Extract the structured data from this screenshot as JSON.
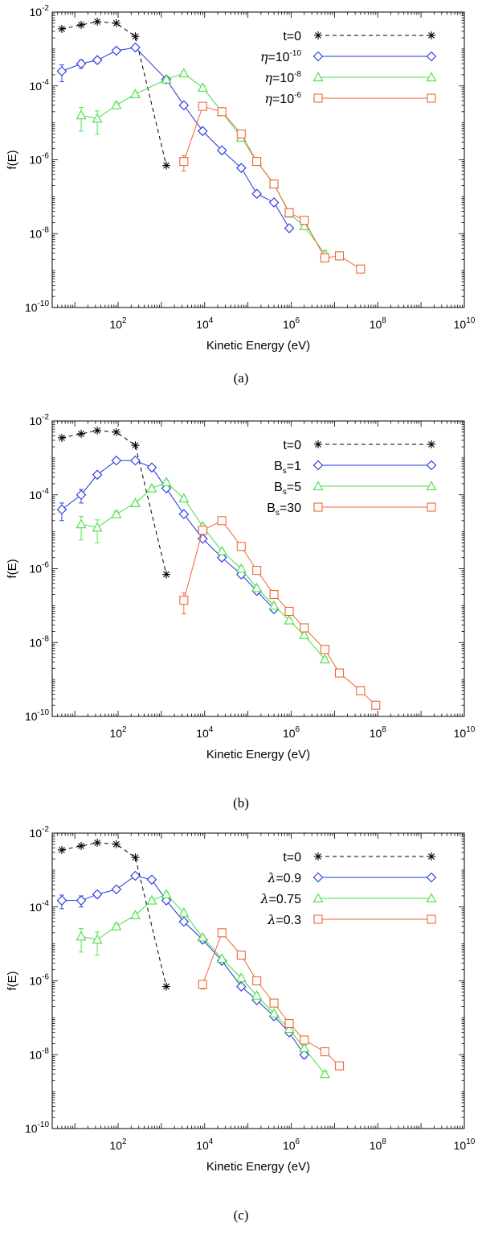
{
  "chart_data": [
    {
      "type": "line",
      "caption": "(a)",
      "xlabel": "Kinetic Energy (eV)",
      "ylabel": "f(E)",
      "x_scale": "log",
      "y_scale": "log",
      "xlim": [
        3,
        10000000000
      ],
      "ylim": [
        1e-10,
        0.01
      ],
      "x_ticks": [
        {
          "value": 100,
          "base": "10",
          "exp": "2"
        },
        {
          "value": 10000,
          "base": "10",
          "exp": "4"
        },
        {
          "value": 1000000,
          "base": "10",
          "exp": "6"
        },
        {
          "value": 100000000,
          "base": "10",
          "exp": "8"
        },
        {
          "value": 10000000000,
          "base": "10",
          "exp": "10"
        }
      ],
      "y_ticks": [
        {
          "value": 0.01,
          "base": "10",
          "exp": "-2"
        },
        {
          "value": 0.0001,
          "base": "10",
          "exp": "-4"
        },
        {
          "value": 1e-06,
          "base": "10",
          "exp": "-6"
        },
        {
          "value": 1e-08,
          "base": "10",
          "exp": "-8"
        },
        {
          "value": 1e-10,
          "base": "10",
          "exp": "-10"
        }
      ],
      "series": [
        {
          "name": "t=0",
          "color": "#000000",
          "marker": "asterisk",
          "dashed": true,
          "legend_parts": [
            {
              "t": "t=0",
              "s": "normal"
            }
          ],
          "x": [
            5,
            14,
            33,
            91,
            250,
            1300
          ],
          "y": [
            0.0035,
            0.0045,
            0.0055,
            0.005,
            0.0022,
            7e-07
          ]
        },
        {
          "name": "eta=1e-10",
          "color": "#2233dd",
          "marker": "diamond",
          "dashed": false,
          "legend_parts": [
            {
              "t": "η",
              "s": "italic"
            },
            {
              "t": "=10",
              "s": "normal"
            },
            {
              "t": "-10",
              "s": "sup"
            }
          ],
          "x": [
            5,
            14,
            33,
            91,
            250,
            1300,
            3300,
            9000,
            25000,
            70000,
            160000,
            400000,
            900000
          ],
          "y": [
            0.00025,
            0.0004,
            0.0005,
            0.0009,
            0.0011,
            0.00015,
            3e-05,
            6e-06,
            1.8e-06,
            6e-07,
            1.2e-07,
            7e-08,
            1.4e-08
          ],
          "err": [
            0.00012,
            0.0001,
            8e-05,
            0.0001,
            0.00012,
            2e-05,
            4e-06,
            8e-07,
            2e-07,
            8e-08,
            2e-08,
            1e-08,
            2e-09
          ]
        },
        {
          "name": "eta=1e-8",
          "color": "#44dd44",
          "marker": "triangle",
          "dashed": false,
          "legend_parts": [
            {
              "t": "η",
              "s": "italic"
            },
            {
              "t": "=10",
              "s": "normal"
            },
            {
              "t": "-8",
              "s": "sup"
            }
          ],
          "x": [
            14,
            33,
            91,
            250,
            1300,
            3300,
            9000,
            25000,
            70000,
            160000,
            400000,
            900000,
            2000000,
            6000000
          ],
          "y": [
            1.6e-05,
            1.3e-05,
            3e-05,
            6e-05,
            0.00015,
            0.00022,
            9e-05,
            2e-05,
            4e-06,
            9e-07,
            2.2e-07,
            3.5e-08,
            1.6e-08,
            2.8e-09
          ],
          "err": [
            1e-05,
            8e-06,
            6e-06,
            8e-06,
            2e-05,
            3e-05,
            1e-05,
            3e-06,
            6e-07,
            1.2e-07,
            3e-08,
            5e-09,
            3e-09,
            6e-10
          ]
        },
        {
          "name": "eta=1e-6",
          "color": "#ee6633",
          "marker": "square",
          "dashed": false,
          "legend_parts": [
            {
              "t": "η",
              "s": "italic"
            },
            {
              "t": "=10",
              "s": "normal"
            },
            {
              "t": "-6",
              "s": "sup"
            }
          ],
          "x": [
            3300,
            9000,
            25000,
            70000,
            160000,
            400000,
            900000,
            2000000,
            6000000,
            13000000,
            40000000
          ],
          "y": [
            9e-07,
            2.8e-05,
            2e-05,
            5e-06,
            9e-07,
            2.2e-07,
            3.7e-08,
            2.3e-08,
            2.2e-09,
            2.5e-09,
            1.1e-09
          ],
          "err": [
            4e-07,
            4e-06,
            3e-06,
            7e-07,
            1.5e-07,
            4e-08,
            6e-09,
            4e-09,
            4e-10,
            4e-10,
            2e-10
          ]
        }
      ]
    },
    {
      "type": "line",
      "caption": "(b)",
      "xlabel": "Kinetic Energy (eV)",
      "ylabel": "f(E)",
      "x_scale": "log",
      "y_scale": "log",
      "xlim": [
        3,
        10000000000
      ],
      "ylim": [
        1e-10,
        0.01
      ],
      "x_ticks": [
        {
          "value": 100,
          "base": "10",
          "exp": "2"
        },
        {
          "value": 10000,
          "base": "10",
          "exp": "4"
        },
        {
          "value": 1000000,
          "base": "10",
          "exp": "6"
        },
        {
          "value": 100000000,
          "base": "10",
          "exp": "8"
        },
        {
          "value": 10000000000,
          "base": "10",
          "exp": "10"
        }
      ],
      "y_ticks": [
        {
          "value": 0.01,
          "base": "10",
          "exp": "-2"
        },
        {
          "value": 0.0001,
          "base": "10",
          "exp": "-4"
        },
        {
          "value": 1e-06,
          "base": "10",
          "exp": "-6"
        },
        {
          "value": 1e-08,
          "base": "10",
          "exp": "-8"
        },
        {
          "value": 1e-10,
          "base": "10",
          "exp": "-10"
        }
      ],
      "series": [
        {
          "name": "t=0",
          "color": "#000000",
          "marker": "asterisk",
          "dashed": true,
          "legend_parts": [
            {
              "t": "t=0",
              "s": "normal"
            }
          ],
          "x": [
            5,
            14,
            33,
            91,
            250,
            1300
          ],
          "y": [
            0.0035,
            0.0045,
            0.0055,
            0.005,
            0.0022,
            7e-07
          ]
        },
        {
          "name": "Bs=1",
          "color": "#2233dd",
          "marker": "diamond",
          "dashed": false,
          "legend_parts": [
            {
              "t": "B",
              "s": "normal"
            },
            {
              "t": "s",
              "s": "sub"
            },
            {
              "t": "=1",
              "s": "normal"
            }
          ],
          "x": [
            5,
            14,
            33,
            91,
            250,
            600,
            1300,
            3300,
            9000,
            25000,
            70000,
            160000,
            400000
          ],
          "y": [
            4e-05,
            0.0001,
            0.00035,
            0.00085,
            0.00085,
            0.00055,
            0.00015,
            3e-05,
            6.5e-06,
            2e-06,
            7e-07,
            2.5e-07,
            8e-08
          ],
          "err": [
            2e-05,
            4e-05,
            6e-05,
            0.0001,
            0.0001,
            8e-05,
            2e-05,
            4e-06,
            8e-07,
            3e-07,
            1e-07,
            4e-08,
            1e-08
          ]
        },
        {
          "name": "Bs=5",
          "color": "#44dd44",
          "marker": "triangle",
          "dashed": false,
          "legend_parts": [
            {
              "t": "B",
              "s": "normal"
            },
            {
              "t": "s",
              "s": "sub"
            },
            {
              "t": "=5",
              "s": "normal"
            }
          ],
          "x": [
            14,
            33,
            91,
            250,
            600,
            1300,
            3300,
            9000,
            25000,
            70000,
            160000,
            400000,
            900000,
            2000000,
            6000000
          ],
          "y": [
            1.6e-05,
            1.3e-05,
            3e-05,
            6e-05,
            0.00015,
            0.00022,
            8e-05,
            1.4e-05,
            3e-06,
            1e-06,
            3e-07,
            1e-07,
            4e-08,
            1.6e-08,
            3.5e-09
          ],
          "err": [
            1e-05,
            8e-06,
            6e-06,
            8e-06,
            2e-05,
            3e-05,
            1e-05,
            2e-06,
            4e-07,
            1.5e-07,
            4e-08,
            1.5e-08,
            6e-09,
            3e-09,
            6e-10
          ]
        },
        {
          "name": "Bs=30",
          "color": "#ee6633",
          "marker": "square",
          "dashed": false,
          "legend_parts": [
            {
              "t": "B",
              "s": "normal"
            },
            {
              "t": "s",
              "s": "sub"
            },
            {
              "t": "=30",
              "s": "normal"
            }
          ],
          "x": [
            3300,
            9000,
            25000,
            70000,
            160000,
            400000,
            900000,
            2000000,
            6000000,
            13000000,
            40000000,
            90000000
          ],
          "y": [
            1.4e-07,
            1.1e-05,
            2e-05,
            4e-06,
            9e-07,
            2e-07,
            7e-08,
            2.5e-08,
            6.5e-09,
            1.5e-09,
            5e-10,
            2e-10
          ],
          "err": [
            8e-08,
            2e-06,
            3e-06,
            6e-07,
            1.4e-07,
            3e-08,
            1e-08,
            4e-09,
            1e-09,
            3e-10,
            1e-10,
            4e-11
          ]
        }
      ]
    },
    {
      "type": "line",
      "caption": "(c)",
      "xlabel": "Kinetic Energy (eV)",
      "ylabel": "f(E)",
      "x_scale": "log",
      "y_scale": "log",
      "xlim": [
        3,
        10000000000
      ],
      "ylim": [
        1e-10,
        0.01
      ],
      "x_ticks": [
        {
          "value": 100,
          "base": "10",
          "exp": "2"
        },
        {
          "value": 10000,
          "base": "10",
          "exp": "4"
        },
        {
          "value": 1000000,
          "base": "10",
          "exp": "6"
        },
        {
          "value": 100000000,
          "base": "10",
          "exp": "8"
        },
        {
          "value": 10000000000,
          "base": "10",
          "exp": "10"
        }
      ],
      "y_ticks": [
        {
          "value": 0.01,
          "base": "10",
          "exp": "-2"
        },
        {
          "value": 0.0001,
          "base": "10",
          "exp": "-4"
        },
        {
          "value": 1e-06,
          "base": "10",
          "exp": "-6"
        },
        {
          "value": 1e-08,
          "base": "10",
          "exp": "-8"
        },
        {
          "value": 1e-10,
          "base": "10",
          "exp": "-10"
        }
      ],
      "series": [
        {
          "name": "t=0",
          "color": "#000000",
          "marker": "asterisk",
          "dashed": true,
          "legend_parts": [
            {
              "t": "t=0",
              "s": "normal"
            }
          ],
          "x": [
            5,
            14,
            33,
            91,
            250,
            1300
          ],
          "y": [
            0.0035,
            0.0045,
            0.0055,
            0.005,
            0.0022,
            7e-07
          ]
        },
        {
          "name": "lambda=0.9",
          "color": "#2233dd",
          "marker": "diamond",
          "dashed": false,
          "legend_parts": [
            {
              "t": "λ",
              "s": "italic"
            },
            {
              "t": "=0.9",
              "s": "normal"
            }
          ],
          "x": [
            5,
            14,
            33,
            91,
            250,
            600,
            1300,
            3300,
            9000,
            25000,
            70000,
            160000,
            400000,
            900000,
            2000000
          ],
          "y": [
            0.00015,
            0.00015,
            0.00022,
            0.0003,
            0.0007,
            0.00055,
            0.00015,
            4e-05,
            1.3e-05,
            3.5e-06,
            7e-07,
            3e-07,
            1.1e-07,
            4e-08,
            1e-08
          ],
          "err": [
            6e-05,
            5e-05,
            4e-05,
            4e-05,
            0.0001,
            8e-05,
            2e-05,
            5e-06,
            2e-06,
            5e-07,
            1e-07,
            4e-08,
            1.5e-08,
            6e-09,
            2e-09
          ]
        },
        {
          "name": "lambda=0.75",
          "color": "#44dd44",
          "marker": "triangle",
          "dashed": false,
          "legend_parts": [
            {
              "t": "λ",
              "s": "italic"
            },
            {
              "t": "=0.75",
              "s": "normal"
            }
          ],
          "x": [
            14,
            33,
            91,
            250,
            600,
            1300,
            3300,
            9000,
            25000,
            70000,
            160000,
            400000,
            900000,
            2000000,
            6000000
          ],
          "y": [
            1.6e-05,
            1.3e-05,
            3e-05,
            6e-05,
            0.00015,
            0.00022,
            7e-05,
            1.5e-05,
            4e-06,
            1.2e-06,
            4e-07,
            1.3e-07,
            5e-08,
            1.5e-08,
            3e-09
          ],
          "err": [
            1e-05,
            8e-06,
            6e-06,
            8e-06,
            2e-05,
            3e-05,
            1e-05,
            2e-06,
            6e-07,
            2e-07,
            6e-08,
            2e-08,
            8e-09,
            3e-09,
            6e-10
          ]
        },
        {
          "name": "lambda=0.3",
          "color": "#ee6633",
          "marker": "square",
          "dashed": false,
          "legend_parts": [
            {
              "t": "λ",
              "s": "italic"
            },
            {
              "t": "=0.3",
              "s": "normal"
            }
          ],
          "x": [
            9000,
            25000,
            70000,
            160000,
            400000,
            900000,
            2000000,
            6000000,
            13000000
          ],
          "y": [
            8e-07,
            2e-05,
            5e-06,
            1e-06,
            2.5e-07,
            7e-08,
            2.5e-08,
            1.2e-08,
            5e-09
          ],
          "err": [
            2e-07,
            3e-06,
            8e-07,
            1.5e-07,
            4e-08,
            1e-08,
            4e-09,
            2e-09,
            8e-10
          ]
        }
      ]
    }
  ]
}
